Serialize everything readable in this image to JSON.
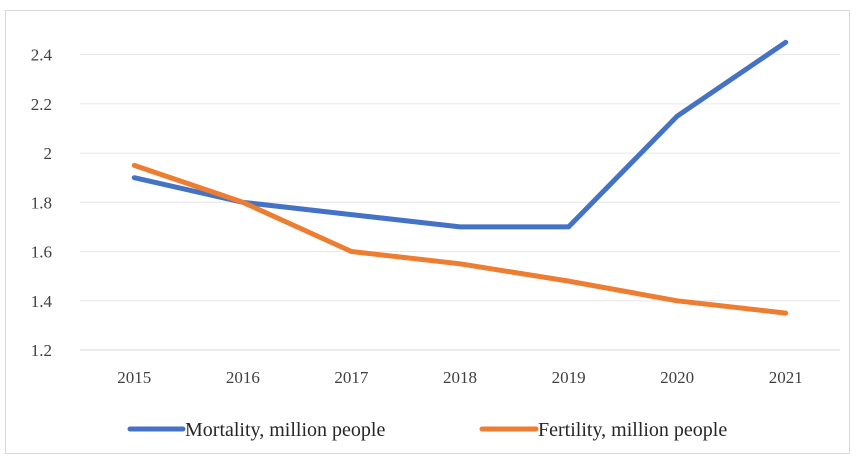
{
  "chart_data": {
    "type": "line",
    "title": "",
    "xlabel": "",
    "ylabel": "",
    "x": [
      "2015",
      "2016",
      "2017",
      "2018",
      "2019",
      "2020",
      "2021"
    ],
    "ylim": [
      1.2,
      2.5
    ],
    "yticks": [
      1.2,
      1.4,
      1.6,
      1.8,
      2,
      2.2,
      2.4
    ],
    "grid": "horizontal",
    "legend_position": "bottom",
    "series": [
      {
        "name": "Mortality, million people",
        "color": "#4472C4",
        "values": [
          1.9,
          1.8,
          1.75,
          1.7,
          1.7,
          2.15,
          2.45
        ]
      },
      {
        "name": "Fertility, million people",
        "color": "#ED7D31",
        "values": [
          1.95,
          1.8,
          1.6,
          1.55,
          1.48,
          1.4,
          1.35
        ]
      }
    ]
  }
}
